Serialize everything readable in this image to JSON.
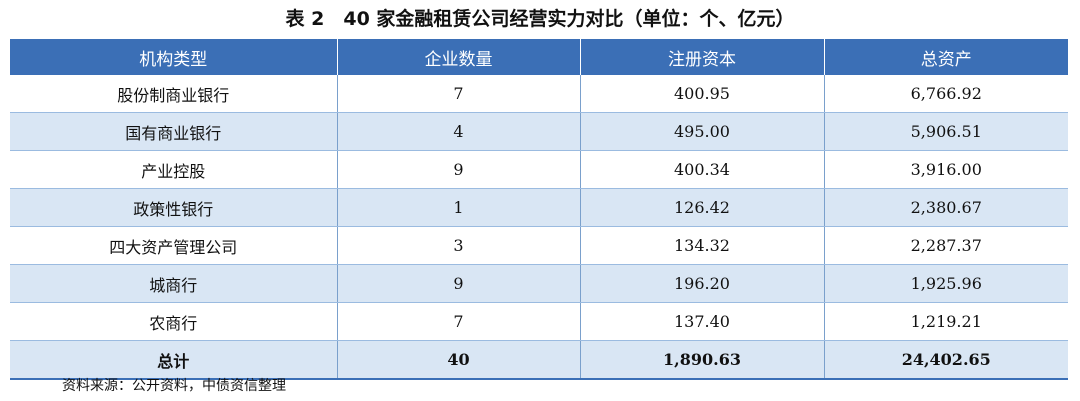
{
  "title": "表 2　40 家金融租赁公司经营实力对比（单位：个、亿元）",
  "table": {
    "headers": [
      "机构类型",
      "企业数量",
      "注册资本",
      "总资产"
    ],
    "rows": [
      [
        "股份制商业银行",
        "7",
        "400.95",
        "6,766.92"
      ],
      [
        "国有商业银行",
        "4",
        "495.00",
        "5,906.51"
      ],
      [
        "产业控股",
        "9",
        "400.34",
        "3,916.00"
      ],
      [
        "政策性银行",
        "1",
        "126.42",
        "2,380.67"
      ],
      [
        "四大资产管理公司",
        "3",
        "134.32",
        "2,287.37"
      ],
      [
        "城商行",
        "9",
        "196.20",
        "1,925.96"
      ],
      [
        "农商行",
        "7",
        "137.40",
        "1,219.21"
      ]
    ],
    "total": [
      "总计",
      "40",
      "1,890.63",
      "24,402.65"
    ]
  },
  "source": "资料来源：公开资料，中债资信整理",
  "colors": {
    "header_bg": "#3b6fb6",
    "alt_row_bg": "#d9e6f4"
  }
}
